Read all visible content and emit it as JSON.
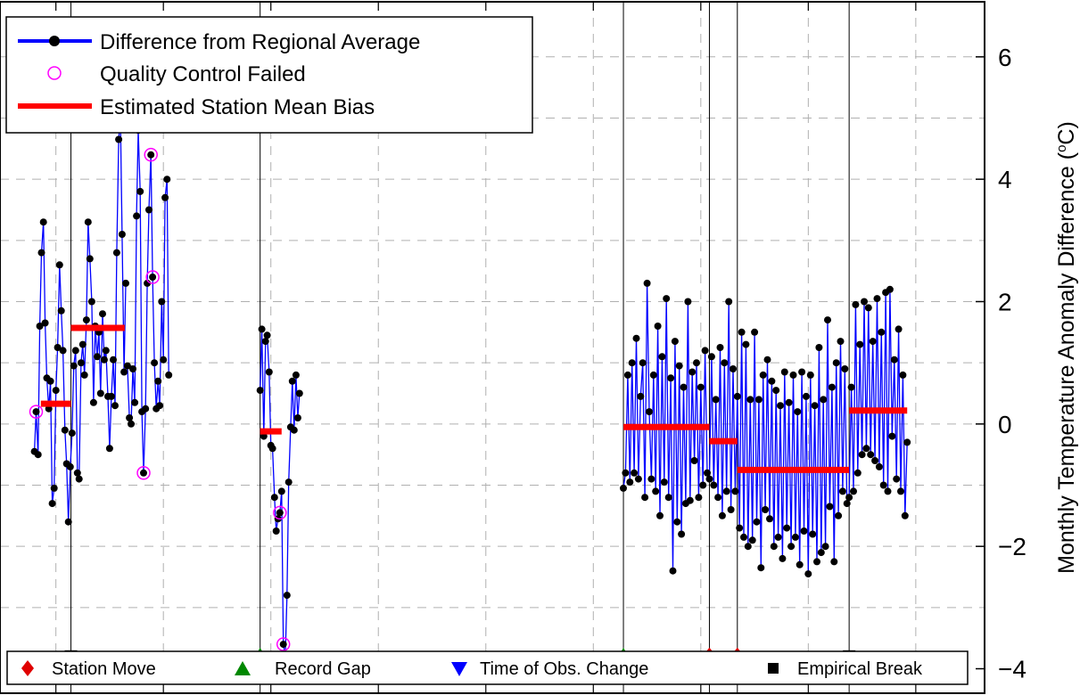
{
  "chart_data": {
    "type": "line",
    "ylabel_main": "Monthly Temperature Anomaly Difference (",
    "ylabel_degree": "o",
    "ylabel_tail": "C)",
    "ylim": [
      -4.4,
      6.9
    ],
    "xlim": [
      1870.4,
      1916.2
    ],
    "y_ticks": [
      -4,
      -2,
      0,
      2,
      4,
      6
    ],
    "y_tick_labels": [
      "−4",
      "−2",
      "0",
      "2",
      "4",
      "6"
    ],
    "x_gridlines": [
      1873,
      1878,
      1883,
      1888,
      1893,
      1898,
      1903,
      1908,
      1913
    ],
    "y_gridlines": [
      -3,
      -2,
      -1,
      0,
      1,
      2,
      3,
      4,
      5,
      6
    ],
    "grid": true,
    "legend": {
      "position": "top-left",
      "entries": [
        {
          "label": "Difference from Regional Average",
          "style": "line-dot",
          "color": "#0000ff"
        },
        {
          "label": "Quality Control Failed",
          "style": "circle",
          "color": "#ff00ff"
        },
        {
          "label": "Estimated Station Mean Bias",
          "style": "thick-line",
          "color": "#ff0000"
        }
      ]
    },
    "bottom_legend": {
      "position": "bottom",
      "entries": [
        {
          "label": "Station Move",
          "marker": "diamond",
          "color": "#e00000"
        },
        {
          "label": "Record Gap",
          "marker": "triangle-up",
          "color": "#008800"
        },
        {
          "label": "Time of Obs. Change",
          "marker": "triangle-down",
          "color": "#0000ff"
        },
        {
          "label": "Empirical Break",
          "marker": "square",
          "color": "#000000"
        }
      ]
    },
    "breaks": [
      {
        "x": 1873.7,
        "type": "Empirical Break"
      },
      {
        "x": 1882.5,
        "type": "Record Gap"
      },
      {
        "x": 1899.4,
        "type": "Record Gap"
      },
      {
        "x": 1903.4,
        "type": "Station Move"
      },
      {
        "x": 1904.7,
        "type": "Station Move"
      },
      {
        "x": 1909.9,
        "type": "Empirical Break"
      }
    ],
    "break_marker_y": -3.8,
    "bias_segments": [
      {
        "x0": 1872.3,
        "x1": 1873.7,
        "value": 0.33
      },
      {
        "x0": 1873.7,
        "x1": 1876.2,
        "value": 1.57
      },
      {
        "x0": 1882.5,
        "x1": 1883.5,
        "value": -0.12
      },
      {
        "x0": 1899.4,
        "x1": 1903.4,
        "value": -0.05
      },
      {
        "x0": 1903.4,
        "x1": 1904.7,
        "value": -0.28
      },
      {
        "x0": 1904.7,
        "x1": 1909.9,
        "value": -0.75
      },
      {
        "x0": 1909.9,
        "x1": 1912.6,
        "value": 0.22
      }
    ],
    "series_name": "Difference from Regional Average",
    "series": [
      {
        "x": [
          1872.0,
          1872.08,
          1872.17,
          1872.25,
          1872.33,
          1872.42,
          1872.5,
          1872.58,
          1872.67,
          1872.75,
          1872.83,
          1872.92,
          1873.0,
          1873.08,
          1873.17,
          1873.25,
          1873.33,
          1873.42,
          1873.5,
          1873.58,
          1873.67,
          1873.75,
          1873.83,
          1873.92,
          1874.0,
          1874.08,
          1874.17,
          1874.25,
          1874.33,
          1874.42,
          1874.5,
          1874.58,
          1874.67,
          1874.75,
          1874.83,
          1874.92,
          1875.0,
          1875.08,
          1875.17,
          1875.25,
          1875.33,
          1875.42,
          1875.5,
          1875.58,
          1875.67,
          1875.75,
          1875.83,
          1875.92,
          1876.0,
          1876.08,
          1876.17,
          1876.25
        ],
        "y": [
          -0.45,
          0.2,
          -0.5,
          1.6,
          2.8,
          3.3,
          1.65,
          0.75,
          0.25,
          0.7,
          -1.3,
          -1.05,
          0.55,
          1.25,
          2.6,
          1.85,
          1.2,
          -0.1,
          -0.65,
          -1.6,
          -0.7,
          -0.15,
          0.95,
          1.2,
          -0.8,
          -0.9,
          1.0,
          1.3,
          0.8,
          1.7,
          3.3,
          2.7,
          2.0,
          0.35,
          1.6,
          1.1,
          1.5,
          0.5,
          1.8,
          1.05,
          1.2,
          0.45,
          -0.4,
          0.45,
          1.05,
          0.3,
          2.8,
          4.65,
          5.05,
          3.1,
          0.85,
          2.3
        ]
      },
      {
        "x": [
          1876.33,
          1876.42,
          1876.5,
          1876.58,
          1876.67,
          1876.75,
          1876.83,
          1876.92,
          1877.0,
          1877.08,
          1877.17,
          1877.25,
          1877.33,
          1877.42,
          1877.5,
          1877.58,
          1877.67,
          1877.75,
          1877.83,
          1877.92,
          1878.0,
          1878.08,
          1878.17,
          1878.25
        ],
        "y": [
          0.95,
          0.1,
          0.0,
          0.9,
          0.35,
          3.4,
          4.8,
          3.8,
          0.2,
          -0.8,
          0.25,
          2.3,
          3.5,
          4.4,
          2.4,
          1.0,
          0.25,
          0.7,
          0.3,
          2.0,
          1.05,
          3.7,
          4.0,
          0.8
        ]
      },
      {
        "x": [
          1882.5,
          1882.58,
          1882.67,
          1882.75,
          1882.83,
          1882.92,
          1883.0,
          1883.08,
          1883.17,
          1883.25,
          1883.33,
          1883.42,
          1883.5,
          1883.58,
          1883.67,
          1883.75,
          1883.83,
          1883.92,
          1884.0,
          1884.08,
          1884.17,
          1884.25,
          1884.33
        ],
        "y": [
          0.55,
          1.55,
          -0.2,
          1.35,
          1.45,
          0.85,
          -0.35,
          -0.4,
          -1.2,
          -1.75,
          -1.55,
          -1.45,
          -1.1,
          -3.6,
          -3.8,
          -2.8,
          -0.95,
          -0.05,
          0.7,
          -0.1,
          0.8,
          0.1,
          0.5
        ]
      },
      {
        "x": [
          1899.4,
          1899.5,
          1899.6,
          1899.7,
          1899.8,
          1899.9,
          1900.0,
          1900.1,
          1900.2,
          1900.3,
          1900.4,
          1900.5,
          1900.6,
          1900.7,
          1900.8,
          1900.9,
          1901.0,
          1901.1,
          1901.2,
          1901.3,
          1901.4,
          1901.5,
          1901.6,
          1901.7,
          1901.8,
          1901.9,
          1902.0,
          1902.1,
          1902.2,
          1902.3,
          1902.4,
          1902.5,
          1902.6,
          1902.7,
          1902.8,
          1902.9,
          1903.0,
          1903.1,
          1903.2,
          1903.3,
          1903.4,
          1903.5,
          1903.6,
          1903.7,
          1903.8,
          1903.9,
          1904.0,
          1904.1,
          1904.2,
          1904.3,
          1904.4,
          1904.5,
          1904.6,
          1904.7,
          1904.8,
          1904.9,
          1905.0,
          1905.1,
          1905.2,
          1905.3,
          1905.4,
          1905.5,
          1905.6,
          1905.7,
          1905.8,
          1905.9,
          1906.0,
          1906.1,
          1906.2,
          1906.3,
          1906.4,
          1906.5,
          1906.6,
          1906.7,
          1906.8,
          1906.9,
          1907.0,
          1907.1,
          1907.2,
          1907.3,
          1907.4,
          1907.5,
          1907.6,
          1907.7,
          1907.8,
          1907.9,
          1908.0,
          1908.1,
          1908.2,
          1908.3,
          1908.4,
          1908.5,
          1908.6,
          1908.7,
          1908.8,
          1908.9,
          1909.0,
          1909.1,
          1909.2,
          1909.3,
          1909.4,
          1909.5,
          1909.6,
          1909.7,
          1909.8,
          1909.9,
          1910.0,
          1910.1,
          1910.2,
          1910.3,
          1910.4,
          1910.5,
          1910.6,
          1910.7,
          1910.8,
          1910.9,
          1911.0,
          1911.1,
          1911.2,
          1911.3,
          1911.4,
          1911.5,
          1911.6,
          1911.7,
          1911.8,
          1911.9,
          1912.0,
          1912.1,
          1912.2,
          1912.3,
          1912.4,
          1912.5,
          1912.6
        ],
        "y": [
          -1.05,
          -0.8,
          0.8,
          -0.95,
          1.0,
          -0.8,
          1.4,
          -0.9,
          0.45,
          1.0,
          -1.2,
          2.3,
          0.2,
          -0.9,
          0.8,
          -1.1,
          1.6,
          -1.5,
          1.1,
          -0.95,
          2.05,
          -1.2,
          0.75,
          -2.4,
          1.35,
          -1.6,
          0.95,
          -1.8,
          0.6,
          -1.3,
          2.0,
          -1.25,
          0.85,
          -0.6,
          1.0,
          -1.2,
          0.6,
          -1.0,
          1.2,
          -0.8,
          -0.9,
          1.1,
          -1.0,
          0.4,
          -1.2,
          1.25,
          -1.5,
          1.0,
          -1.1,
          2.0,
          -1.4,
          0.9,
          -1.1,
          0.45,
          -1.7,
          1.5,
          -1.85,
          1.3,
          -2.0,
          0.4,
          -1.9,
          1.5,
          -1.6,
          0.4,
          -2.35,
          0.8,
          -1.4,
          1.05,
          -1.55,
          0.7,
          -2.0,
          0.55,
          -1.85,
          0.3,
          -2.2,
          0.85,
          -1.7,
          0.35,
          -2.0,
          0.8,
          -1.85,
          0.2,
          -2.3,
          0.85,
          -1.75,
          0.45,
          -2.45,
          0.8,
          -1.8,
          0.3,
          -2.25,
          1.25,
          -2.1,
          0.4,
          -2.0,
          1.7,
          -1.35,
          0.6,
          -2.25,
          1.0,
          -1.5,
          1.35,
          -1.1,
          0.9,
          -1.3,
          -1.2,
          0.6,
          -1.1,
          1.95,
          -0.8,
          1.3,
          -0.5,
          2.0,
          -0.4,
          1.9,
          -0.5,
          1.35,
          -0.6,
          2.05,
          -0.7,
          1.5,
          -1.0,
          2.15,
          -1.1,
          2.2,
          -0.2,
          1.05,
          -0.9,
          1.55,
          -1.1,
          0.8,
          -1.5,
          -0.3
        ]
      }
    ],
    "qc_failed": [
      {
        "x": 1872.08,
        "y": 0.2
      },
      {
        "x": 1877.08,
        "y": -0.8
      },
      {
        "x": 1877.42,
        "y": 4.4
      },
      {
        "x": 1877.5,
        "y": 2.4
      },
      {
        "x": 1883.58,
        "y": -3.6
      },
      {
        "x": 1883.42,
        "y": -1.45
      }
    ]
  }
}
